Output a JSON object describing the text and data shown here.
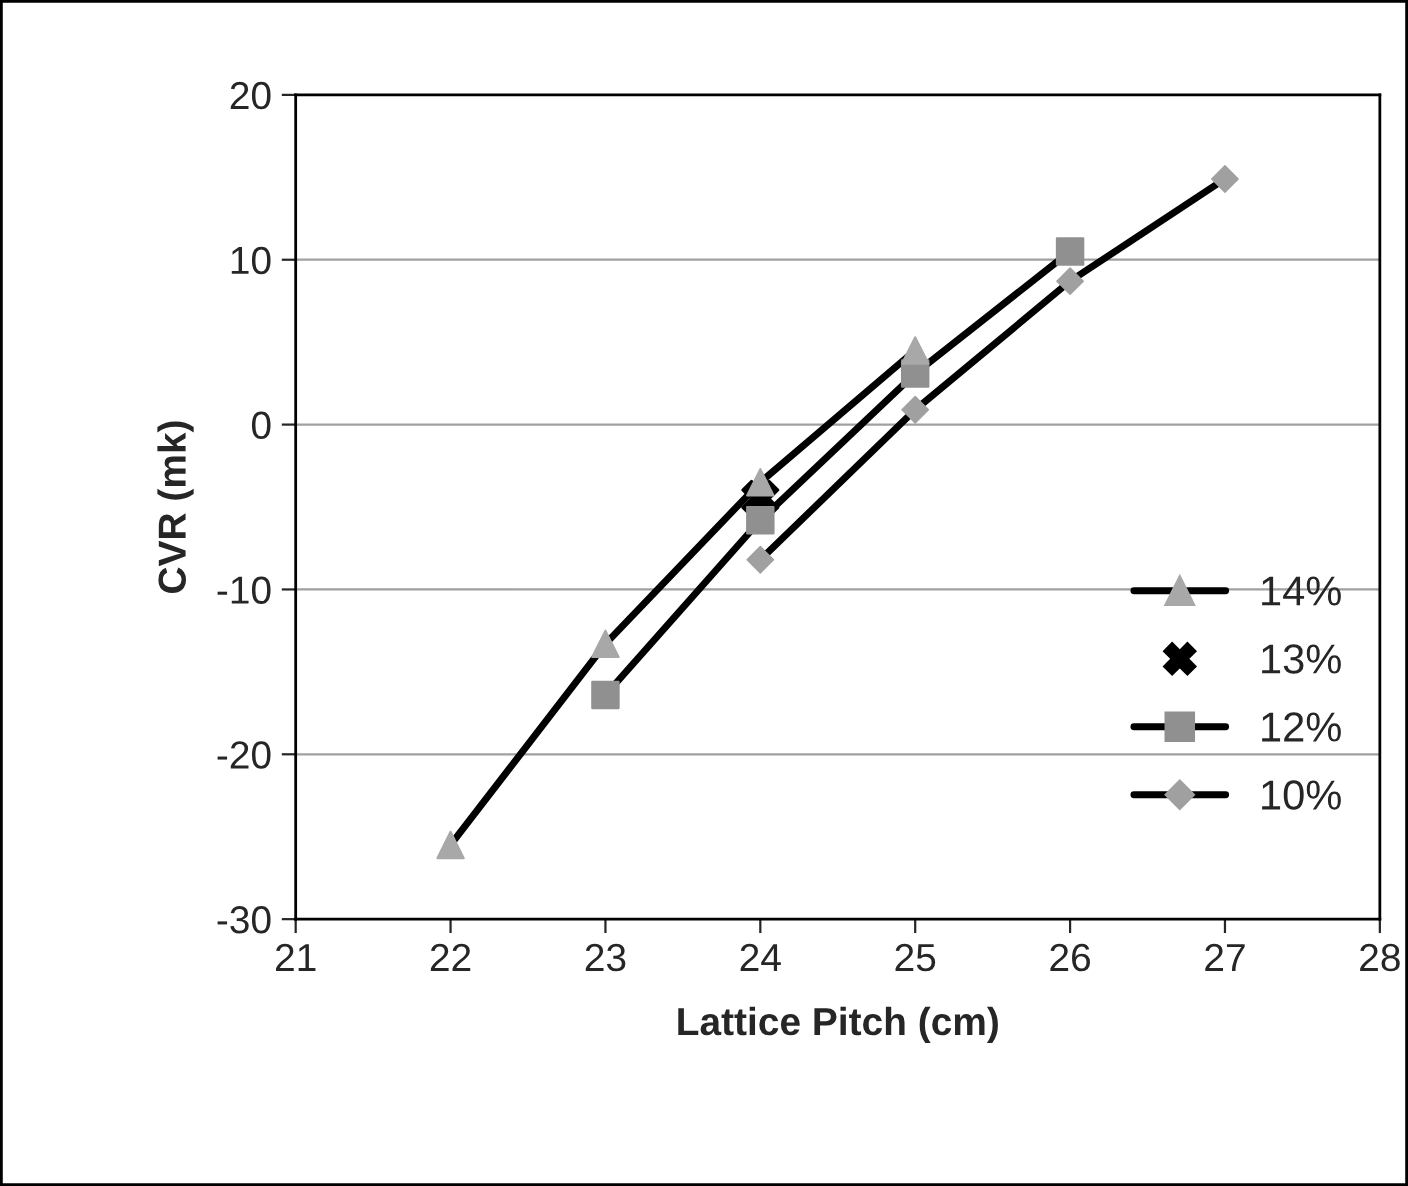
{
  "chart_data": {
    "type": "line",
    "xlabel": "Lattice Pitch (cm)",
    "ylabel": "CVR (mk)",
    "xlim": [
      21,
      28
    ],
    "xticks": [
      21,
      22,
      23,
      24,
      25,
      26,
      27,
      28
    ],
    "ylim": [
      -30,
      20
    ],
    "yticks": [
      -30,
      -20,
      -10,
      0,
      10,
      20
    ],
    "grid": "y",
    "legend": "right",
    "series": [
      {
        "name": "14%",
        "color": "#a8a8a8",
        "marker": "triangle",
        "x": [
          22,
          23,
          24,
          25
        ],
        "values": [
          -25.5,
          -13.3,
          -3.5,
          4.5
        ]
      },
      {
        "name": "13%",
        "type": "scatter",
        "color": "#000000",
        "marker": "cross",
        "x": [
          24
        ],
        "values": [
          -4.5
        ]
      },
      {
        "name": "12%",
        "color": "#909090",
        "marker": "square",
        "x": [
          23,
          24,
          25,
          26
        ],
        "values": [
          -16.4,
          -5.8,
          3.1,
          10.5
        ]
      },
      {
        "name": "10%",
        "color": "#a0a0a0",
        "marker": "diamond",
        "x": [
          24,
          25,
          26,
          27
        ],
        "values": [
          -8.2,
          0.9,
          8.7,
          14.9
        ]
      }
    ]
  }
}
